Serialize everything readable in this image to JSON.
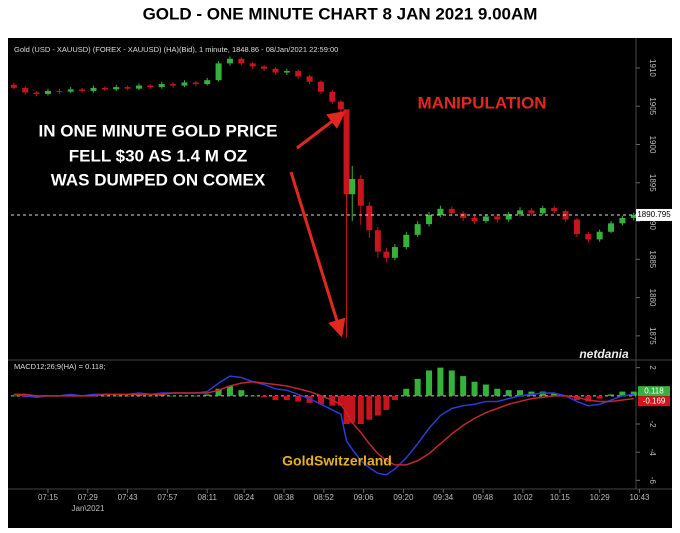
{
  "title": "GOLD - ONE MINUTE CHART 8 JAN 2021 9.00AM",
  "chart_data": {
    "type": "candlestick",
    "subtitle": "Gold (USD - XAUUSD) (FOREX - XAUUSD) (HA)(Bid), 1 minute, 1848.86 - 08/Jan/2021 22:59:00",
    "annotations": [
      "MANIPULATION",
      "IN ONE MINUTE  GOLD PRICE",
      "FELL $30 AS 1.4 M OZ",
      "WAS DUMPED ON COMEX",
      "GoldSwitzerland"
    ],
    "watermark": "netdania",
    "x_sublabel": "Jan\\2021",
    "x": [
      "07:03",
      "07:07",
      "07:11",
      "07:15",
      "07:19",
      "07:23",
      "07:27",
      "07:31",
      "07:35",
      "07:39",
      "07:43",
      "07:47",
      "07:51",
      "07:55",
      "07:59",
      "08:03",
      "08:07",
      "08:11",
      "08:15",
      "08:19",
      "08:23",
      "08:27",
      "08:31",
      "08:35",
      "08:39",
      "08:43",
      "08:47",
      "08:51",
      "08:55",
      "08:58",
      "09:00",
      "09:02",
      "09:05",
      "09:08",
      "09:11",
      "09:14",
      "09:17",
      "09:21",
      "09:25",
      "09:29",
      "09:33",
      "09:37",
      "09:41",
      "09:45",
      "09:49",
      "09:53",
      "09:57",
      "10:01",
      "10:05",
      "10:09",
      "10:13",
      "10:17",
      "10:21",
      "10:25",
      "10:29",
      "10:33",
      "10:37",
      "10:41"
    ],
    "open": [
      1907.8,
      1907.4,
      1906.8,
      1906.6,
      1907.0,
      1906.9,
      1907.2,
      1907.0,
      1907.4,
      1907.2,
      1907.5,
      1907.3,
      1907.7,
      1907.5,
      1907.9,
      1907.7,
      1908.1,
      1907.9,
      1908.4,
      1910.6,
      1911.2,
      1910.6,
      1910.2,
      1909.9,
      1909.4,
      1909.6,
      1908.9,
      1908.2,
      1906.9,
      1905.6,
      1904.6,
      1893.5,
      1895.5,
      1892.0,
      1888.8,
      1886.0,
      1885.2,
      1886.6,
      1888.2,
      1889.6,
      1890.8,
      1891.6,
      1891.0,
      1890.4,
      1890.0,
      1890.6,
      1890.2,
      1890.9,
      1891.4,
      1891.0,
      1891.7,
      1891.3,
      1890.2,
      1888.3,
      1887.6,
      1888.6,
      1889.7,
      1890.4
    ],
    "high": [
      1908.1,
      1907.6,
      1907.0,
      1907.3,
      1907.3,
      1907.5,
      1907.4,
      1907.7,
      1907.6,
      1907.8,
      1907.7,
      1908.0,
      1907.9,
      1908.2,
      1908.1,
      1908.4,
      1908.3,
      1908.7,
      1910.9,
      1911.5,
      1911.4,
      1910.8,
      1910.4,
      1910.1,
      1909.9,
      1909.8,
      1909.1,
      1908.4,
      1907.1,
      1905.8,
      1904.6,
      1897.2,
      1896.0,
      1892.5,
      1889.2,
      1886.5,
      1887.0,
      1888.6,
      1890.0,
      1891.2,
      1892.0,
      1891.9,
      1891.3,
      1890.7,
      1890.9,
      1890.9,
      1891.2,
      1891.8,
      1891.7,
      1892.0,
      1892.0,
      1891.5,
      1890.4,
      1888.6,
      1888.9,
      1890.0,
      1890.7,
      1891.1
    ],
    "low": [
      1907.2,
      1906.5,
      1906.3,
      1906.4,
      1906.6,
      1906.7,
      1906.8,
      1906.8,
      1907.0,
      1907.0,
      1907.1,
      1907.1,
      1907.3,
      1907.3,
      1907.4,
      1907.5,
      1907.6,
      1907.7,
      1908.2,
      1910.3,
      1910.3,
      1909.9,
      1909.6,
      1909.1,
      1909.1,
      1908.6,
      1907.9,
      1906.6,
      1905.3,
      1904.2,
      1874.8,
      1890.0,
      1889.5,
      1887.8,
      1885.2,
      1884.6,
      1884.9,
      1886.3,
      1887.9,
      1889.3,
      1890.5,
      1890.6,
      1890.0,
      1889.6,
      1889.7,
      1889.8,
      1889.9,
      1890.6,
      1890.7,
      1890.8,
      1891.0,
      1889.9,
      1887.9,
      1887.2,
      1887.3,
      1888.4,
      1889.4,
      1890.1
    ],
    "close": [
      1907.4,
      1906.8,
      1906.6,
      1907.0,
      1906.9,
      1907.2,
      1907.0,
      1907.4,
      1907.2,
      1907.5,
      1907.3,
      1907.7,
      1907.5,
      1907.9,
      1907.7,
      1908.1,
      1907.9,
      1908.4,
      1910.6,
      1911.2,
      1910.6,
      1910.2,
      1909.9,
      1909.4,
      1909.6,
      1908.9,
      1908.2,
      1906.9,
      1905.6,
      1904.6,
      1893.5,
      1895.5,
      1892.0,
      1888.8,
      1886.0,
      1885.2,
      1886.6,
      1888.2,
      1889.6,
      1890.8,
      1891.6,
      1891.0,
      1890.4,
      1890.0,
      1890.6,
      1890.2,
      1890.9,
      1891.4,
      1891.0,
      1891.7,
      1891.3,
      1890.2,
      1888.3,
      1887.6,
      1888.6,
      1889.7,
      1890.4,
      1890.8
    ],
    "up_color": "#35b13c",
    "down_color": "#c8141c",
    "xlim": [
      "07:02",
      "10:46"
    ],
    "xticks": [
      "07:15",
      "07:29",
      "07:43",
      "07:57",
      "08:11",
      "08:24",
      "08:38",
      "08:52",
      "09:06",
      "09:20",
      "09:34",
      "09:48",
      "10:02",
      "10:15",
      "10:29",
      "10:43"
    ],
    "ylim": [
      1872.5,
      1913
    ],
    "yticks": [
      1875,
      1880,
      1885,
      1890,
      1895,
      1900,
      1905,
      1910
    ],
    "last_price": 1890.795,
    "macd": {
      "type": "macd",
      "legend": "MACD12;26;9(HA) = 0.118;",
      "ylim": [
        -6.4,
        2.4
      ],
      "yticks": [
        2,
        -2,
        -4,
        -6
      ],
      "histogram": {
        "up_color": "#35b13c",
        "down_color": "#c8141c",
        "values": [
          0,
          -0.1,
          -0.1,
          0,
          0,
          0.1,
          0,
          0.1,
          0,
          0,
          0,
          0.1,
          0,
          0.1,
          0,
          0,
          0,
          0.1,
          0.5,
          0.7,
          0.4,
          0,
          -0.1,
          -0.3,
          -0.3,
          -0.4,
          -0.5,
          -0.6,
          -0.7,
          -0.7,
          -2.0,
          -1.9,
          -2.0,
          -1.7,
          -1.4,
          -1.0,
          -0.3,
          0.5,
          1.2,
          1.8,
          2.0,
          1.8,
          1.4,
          1.0,
          0.8,
          0.5,
          0.4,
          0.4,
          0.3,
          0.3,
          0.2,
          0,
          -0.3,
          -0.4,
          -0.2,
          0.1,
          0.3,
          0.3
        ]
      },
      "series": [
        {
          "color": "#2a3bd8",
          "values": [
            0.1,
            0.0,
            -0.1,
            0.0,
            0.0,
            0.1,
            0.0,
            0.1,
            0.1,
            0.1,
            0.1,
            0.2,
            0.1,
            0.2,
            0.2,
            0.2,
            0.2,
            0.3,
            0.9,
            1.4,
            1.3,
            1.0,
            0.8,
            0.5,
            0.4,
            0.1,
            -0.2,
            -0.6,
            -1.0,
            -1.3,
            -3.2,
            -3.8,
            -4.6,
            -5.1,
            -5.5,
            -5.6,
            -5.2,
            -4.4,
            -3.4,
            -2.3,
            -1.4,
            -0.9,
            -0.7,
            -0.6,
            -0.4,
            -0.4,
            -0.2,
            0.0,
            0.1,
            0.2,
            0.2,
            0.0,
            -0.4,
            -0.7,
            -0.6,
            -0.3,
            0.0,
            0.1
          ]
        },
        {
          "color": "#c0282c",
          "values": [
            0.1,
            0.1,
            0.0,
            0.0,
            0.0,
            0.0,
            0.0,
            0.0,
            0.1,
            0.1,
            0.1,
            0.1,
            0.1,
            0.1,
            0.2,
            0.2,
            0.2,
            0.2,
            0.4,
            0.7,
            0.9,
            1.0,
            0.9,
            0.8,
            0.7,
            0.5,
            0.3,
            0.0,
            -0.3,
            -0.6,
            -1.2,
            -1.9,
            -2.6,
            -3.4,
            -4.1,
            -4.6,
            -4.9,
            -4.9,
            -4.6,
            -4.1,
            -3.4,
            -2.7,
            -2.1,
            -1.6,
            -1.2,
            -0.9,
            -0.6,
            -0.4,
            -0.2,
            -0.1,
            0.0,
            0.0,
            -0.1,
            -0.3,
            -0.4,
            -0.4,
            -0.3,
            -0.2
          ]
        }
      ],
      "last_values": [
        0.118,
        -0.169
      ]
    }
  }
}
